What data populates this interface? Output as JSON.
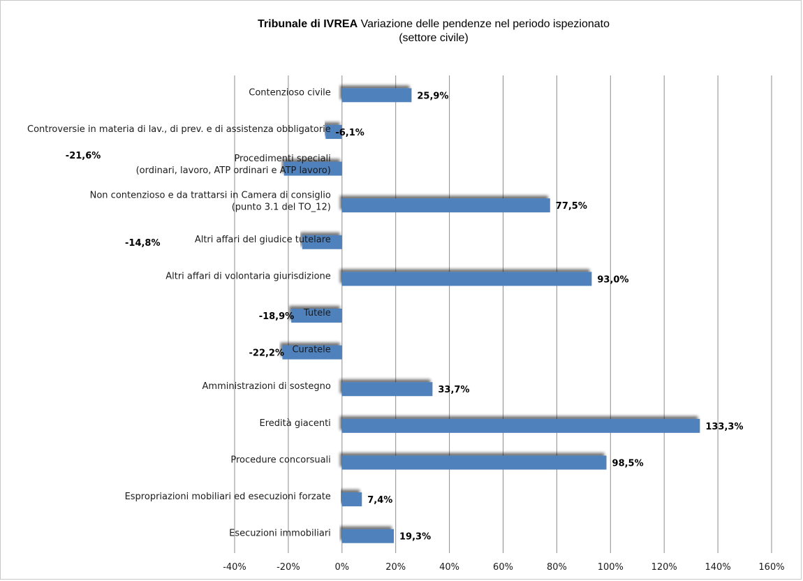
{
  "chart_data": {
    "type": "bar",
    "orientation": "horizontal",
    "title_bold": "Tribunale di IVREA",
    "title_rest": "Variazione delle pendenze nel periodo ispezionato",
    "subtitle": "(settore civile)",
    "categories": [
      [
        "Contenzioso civile"
      ],
      [
        "Controversie in materia di lav., di prev. e di assistenza obbligatorie"
      ],
      [
        "Procedimenti speciali",
        "(ordinari, lavoro, ATP ordinari e ATP lavoro)"
      ],
      [
        "Non contenzioso e da trattarsi in Camera di consiglio",
        "(punto 3.1 del TO_12)"
      ],
      [
        "Altri affari del giudice tutelare"
      ],
      [
        "Altri affari di volontaria giurisdizione"
      ],
      [
        "Tutele"
      ],
      [
        "Curatele"
      ],
      [
        "Amministrazioni di sostegno"
      ],
      [
        "Eredità giacenti"
      ],
      [
        "Procedure concorsuali"
      ],
      [
        "Espropriazioni mobiliari ed esecuzioni forzate"
      ],
      [
        "Esecuzioni immobiliari"
      ]
    ],
    "values": [
      25.9,
      -6.1,
      -21.6,
      77.5,
      -14.8,
      93.0,
      -18.9,
      -22.2,
      33.7,
      133.3,
      98.5,
      7.4,
      19.3
    ],
    "value_labels": [
      "25,9%",
      "-6,1%",
      "-21,6%",
      "77,5%",
      "-14,8%",
      "93,0%",
      "-18,9%",
      "-22,2%",
      "33,7%",
      "133,3%",
      "98,5%",
      "7,4%",
      "19,3%"
    ],
    "xlim": [
      -40,
      160
    ],
    "xticks": [
      -40,
      -20,
      0,
      20,
      40,
      60,
      80,
      100,
      120,
      140,
      160
    ],
    "xtick_labels": [
      "-40%",
      "-20%",
      "0%",
      "20%",
      "40%",
      "60%",
      "80%",
      "100%",
      "120%",
      "140%",
      "160%"
    ],
    "grid": "vertical",
    "bar_color": "#4F81BD",
    "gridline_color": "#8c8c8c"
  }
}
